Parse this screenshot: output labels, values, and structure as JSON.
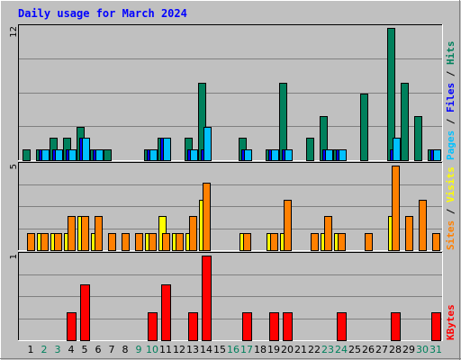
{
  "chart_data": {
    "type": "bar",
    "title": "Daily usage for March 2024",
    "days": [
      "1",
      "2",
      "3",
      "4",
      "5",
      "6",
      "7",
      "8",
      "9",
      "10",
      "11",
      "12",
      "13",
      "14",
      "15",
      "16",
      "17",
      "18",
      "19",
      "20",
      "21",
      "22",
      "23",
      "24",
      "25",
      "26",
      "27",
      "28",
      "29",
      "30",
      "31"
    ],
    "weekend_days": [
      2,
      3,
      9,
      10,
      16,
      17,
      23,
      24,
      30,
      31
    ],
    "colors": {
      "background": "#c0c0c0",
      "title": "#0000ff",
      "grid": "#808080",
      "weekend_label": "#00805c",
      "weekday_label": "#000000",
      "hits": "#00805c",
      "files": "#0000ff",
      "pages": "#00c0ff",
      "visits": "#ffff00",
      "sites": "#ff8000",
      "kbytes": "#ff0000"
    },
    "panels": [
      {
        "id": "hits",
        "max_label": "12",
        "ymax": 12,
        "legend": [
          "Pages",
          "Files",
          "Hits"
        ],
        "series": [
          {
            "name": "Hits",
            "color": "#00805c",
            "values": [
              1,
              1,
              2,
              2,
              3,
              1,
              1,
              0,
              0,
              1,
              2,
              0,
              2,
              7,
              0,
              0,
              2,
              0,
              1,
              7,
              0,
              2,
              4,
              1,
              0,
              6,
              0,
              12,
              7,
              4,
              1
            ]
          },
          {
            "name": "Files",
            "color": "#0000ff",
            "values": [
              0,
              1,
              1,
              1,
              2,
              1,
              0,
              0,
              0,
              1,
              2,
              0,
              1,
              1,
              0,
              0,
              1,
              0,
              1,
              1,
              0,
              0,
              1,
              1,
              0,
              0,
              0,
              1,
              0,
              0,
              1
            ]
          },
          {
            "name": "Pages",
            "color": "#00c0ff",
            "values": [
              0,
              1,
              1,
              1,
              2,
              1,
              0,
              0,
              0,
              1,
              2,
              0,
              1,
              3,
              0,
              0,
              1,
              0,
              1,
              1,
              0,
              0,
              1,
              1,
              0,
              0,
              0,
              2,
              0,
              0,
              1
            ]
          }
        ]
      },
      {
        "id": "visits",
        "max_label": "5",
        "ymax": 5,
        "legend": [
          "Sites",
          "Visits"
        ],
        "series": [
          {
            "name": "Visits",
            "color": "#ffff00",
            "values": [
              0,
              1,
              1,
              1,
              2,
              1,
              0,
              0,
              0,
              1,
              2,
              1,
              1,
              3,
              0,
              0,
              1,
              0,
              1,
              1,
              0,
              0,
              1,
              1,
              0,
              0,
              0,
              2,
              0,
              0,
              0
            ]
          },
          {
            "name": "Sites",
            "color": "#ff8000",
            "values": [
              1,
              1,
              1,
              2,
              2,
              2,
              1,
              1,
              1,
              1,
              1,
              1,
              2,
              4,
              0,
              0,
              1,
              0,
              1,
              3,
              0,
              1,
              2,
              1,
              0,
              1,
              0,
              5,
              2,
              3,
              1
            ]
          }
        ]
      },
      {
        "id": "kbytes",
        "max_label": "1",
        "ymax": 1,
        "legend": [
          "KBytes"
        ],
        "series": [
          {
            "name": "KBytes",
            "color": "#ff0000",
            "values": [
              0,
              0,
              0,
              0.33,
              0.66,
              0,
              0,
              0,
              0,
              0.33,
              0.66,
              0,
              0.33,
              1,
              0,
              0,
              0.33,
              0,
              0.33,
              0.33,
              0,
              0,
              0,
              0.33,
              0,
              0,
              0,
              0.33,
              0,
              0,
              0.33
            ]
          }
        ]
      }
    ]
  }
}
